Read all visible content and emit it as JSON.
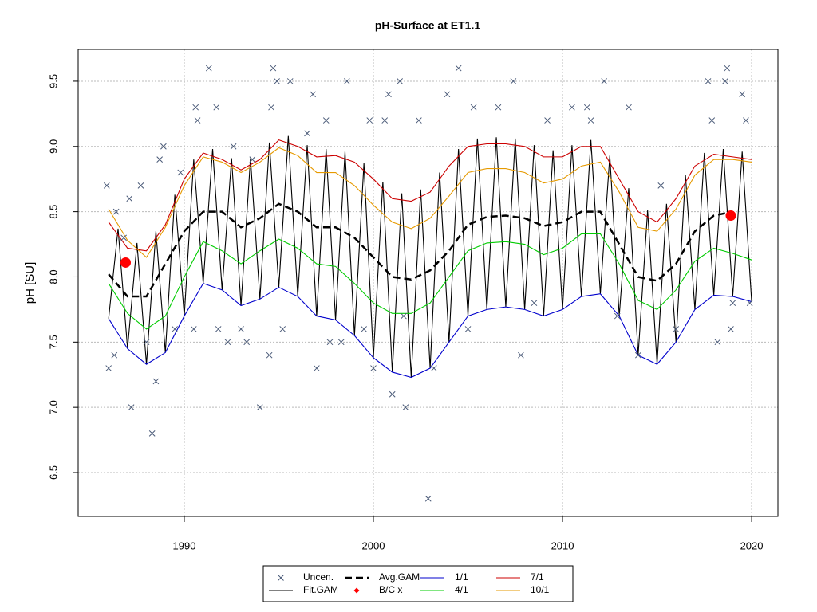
{
  "chart_data": {
    "type": "line",
    "title": "pH-Surface at ET1.1",
    "y_label": "pH [SU]",
    "xlim": [
      1984.39,
      2021.39
    ],
    "ylim": [
      6.164,
      9.744
    ],
    "xticks": [
      1990,
      2000,
      2010,
      2020
    ],
    "yticks": [
      6.5,
      {
        "value": 7,
        "label": "7.0"
      },
      7.5,
      {
        "value": 8,
        "label": "8.0"
      },
      8.5,
      {
        "value": 9,
        "label": "9.0"
      },
      9.5
    ],
    "grid": true,
    "legend": "bottom",
    "series": [
      {
        "name": "Uncen.",
        "kind": "points",
        "marker": "x",
        "color": "#4a5a78",
        "x": [
          1985.9,
          1986.0,
          1986.3,
          1986.4,
          1986.8,
          1987.1,
          1987.2,
          1987.7,
          1988.0,
          1988.3,
          1988.5,
          1988.7,
          1988.9,
          1989.5,
          1989.8,
          1990.5,
          1990.6,
          1990.7,
          1991.3,
          1991.7,
          1991.8,
          1992.3,
          1992.6,
          1993.0,
          1993.3,
          1993.6,
          1994.0,
          1994.5,
          1994.6,
          1994.7,
          1994.9,
          1995.2,
          1995.6,
          1996.5,
          1996.8,
          1997.0,
          1997.5,
          1997.7,
          1998.3,
          1998.6,
          1999.5,
          1999.8,
          2000.0,
          2000.6,
          2000.8,
          2001.0,
          2001.4,
          2001.6,
          2001.7,
          2002.4,
          2002.9,
          2003.2,
          2003.9,
          2004.5,
          2005.0,
          2005.3,
          2006.6,
          2007.4,
          2007.8,
          2008.5,
          2009.2,
          2010.5,
          2011.3,
          2011.5,
          2012.2,
          2012.9,
          2013.5,
          2014.0,
          2015.2,
          2016.0,
          2017.7,
          2017.9,
          2018.2,
          2018.6,
          2018.7,
          2018.9,
          2019.5,
          2019.7,
          2019.0,
          2019.9
        ],
        "values": [
          8.7,
          7.3,
          7.4,
          8.5,
          8.3,
          8.6,
          7.0,
          8.7,
          7.5,
          6.8,
          7.2,
          8.9,
          9.0,
          7.6,
          8.8,
          7.6,
          9.3,
          9.2,
          9.6,
          9.3,
          7.6,
          7.5,
          9.0,
          7.6,
          7.5,
          8.9,
          7.0,
          7.4,
          9.3,
          9.6,
          9.5,
          7.6,
          9.5,
          9.1,
          9.4,
          7.3,
          9.2,
          7.5,
          7.5,
          9.5,
          7.6,
          9.2,
          7.3,
          9.2,
          9.4,
          7.1,
          9.5,
          7.7,
          7.0,
          9.2,
          6.3,
          7.3,
          9.4,
          9.6,
          7.6,
          9.3,
          9.3,
          9.5,
          7.4,
          7.8,
          9.2,
          9.3,
          9.3,
          9.2,
          9.5,
          7.7,
          9.3,
          7.4,
          8.7,
          7.6,
          9.5,
          9.2,
          7.5,
          9.5,
          9.6,
          7.6,
          9.4,
          9.2,
          7.8,
          7.8
        ]
      },
      {
        "name": "Fit.GAM",
        "kind": "line",
        "color": "#000000",
        "x": [
          1986,
          1986.5,
          1987,
          1987.5,
          1988,
          1988.5,
          1989,
          1989.5,
          1990,
          1990.5,
          1991,
          1991.5,
          1992,
          1992.5,
          1993,
          1993.5,
          1994,
          1994.5,
          1995,
          1995.5,
          1996,
          1996.5,
          1997,
          1997.5,
          1998,
          1998.5,
          1999,
          1999.5,
          2000,
          2000.5,
          2001,
          2001.5,
          2002,
          2002.5,
          2003,
          2003.5,
          2004,
          2004.5,
          2005,
          2005.5,
          2006,
          2006.5,
          2007,
          2007.5,
          2008,
          2008.5,
          2009,
          2009.5,
          2010,
          2010.5,
          2011,
          2011.5,
          2012,
          2012.5,
          2013,
          2013.5,
          2014,
          2014.5,
          2015,
          2015.5,
          2016,
          2016.5,
          2017,
          2017.5,
          2018,
          2018.5,
          2019,
          2019.5,
          2020
        ],
        "values": [
          7.68,
          8.37,
          7.45,
          8.26,
          7.33,
          8.35,
          7.42,
          8.63,
          7.7,
          8.9,
          7.95,
          8.98,
          7.9,
          8.91,
          7.78,
          8.91,
          7.83,
          9.03,
          7.92,
          9.08,
          7.85,
          9.01,
          7.7,
          8.98,
          7.67,
          8.96,
          7.55,
          8.87,
          7.38,
          8.73,
          7.27,
          8.64,
          7.23,
          8.67,
          7.3,
          8.8,
          7.5,
          8.98,
          7.7,
          9.06,
          7.75,
          9.07,
          7.77,
          9.06,
          7.75,
          9.01,
          7.7,
          8.97,
          7.75,
          9.01,
          7.85,
          9.05,
          7.87,
          8.93,
          7.7,
          8.68,
          7.4,
          8.51,
          7.33,
          8.56,
          7.5,
          8.78,
          7.75,
          8.95,
          7.86,
          8.98,
          7.85,
          8.96,
          7.81
        ]
      },
      {
        "name": "Avg.GAM",
        "kind": "line",
        "dash": true,
        "color": "#000000",
        "x": [
          1986,
          1987,
          1988,
          1989,
          1990,
          1991,
          1992,
          1993,
          1994,
          1995,
          1996,
          1997,
          1998,
          1999,
          2000,
          2001,
          2002,
          2003,
          2004,
          2005,
          2006,
          2007,
          2008,
          2009,
          2010,
          2011,
          2012,
          2013,
          2014,
          2015,
          2016,
          2017,
          2018,
          2019
        ],
        "values": [
          8.02,
          7.85,
          7.85,
          8.1,
          8.35,
          8.5,
          8.5,
          8.38,
          8.45,
          8.56,
          8.5,
          8.38,
          8.38,
          8.3,
          8.15,
          8.0,
          7.98,
          8.05,
          8.2,
          8.4,
          8.46,
          8.47,
          8.45,
          8.39,
          8.42,
          8.5,
          8.5,
          8.25,
          8.0,
          7.97,
          8.1,
          8.35,
          8.47,
          8.5
        ]
      },
      {
        "name": "B/C x",
        "kind": "points",
        "marker": "circle",
        "color": "#ff0000",
        "x": [
          1986.9,
          2018.9
        ],
        "values": [
          8.11,
          8.47
        ]
      },
      {
        "name": "1/1",
        "kind": "line",
        "color": "#0000cc",
        "x": [
          1986,
          1987,
          1988,
          1989,
          1990,
          1991,
          1992,
          1993,
          1994,
          1995,
          1996,
          1997,
          1998,
          1999,
          2000,
          2001,
          2002,
          2003,
          2004,
          2005,
          2006,
          2007,
          2008,
          2009,
          2010,
          2011,
          2012,
          2013,
          2014,
          2015,
          2016,
          2017,
          2018,
          2019,
          2020
        ],
        "values": [
          7.68,
          7.45,
          7.33,
          7.42,
          7.7,
          7.95,
          7.9,
          7.78,
          7.83,
          7.92,
          7.85,
          7.7,
          7.67,
          7.55,
          7.38,
          7.27,
          7.23,
          7.3,
          7.5,
          7.7,
          7.75,
          7.77,
          7.75,
          7.7,
          7.75,
          7.85,
          7.87,
          7.7,
          7.4,
          7.33,
          7.5,
          7.75,
          7.86,
          7.85,
          7.81
        ]
      },
      {
        "name": "4/1",
        "kind": "line",
        "color": "#00cc00",
        "x": [
          1986,
          1987,
          1988,
          1989,
          1990,
          1991,
          1992,
          1993,
          1994,
          1995,
          1996,
          1997,
          1998,
          1999,
          2000,
          2001,
          2002,
          2003,
          2004,
          2005,
          2006,
          2007,
          2008,
          2009,
          2010,
          2011,
          2012,
          2013,
          2014,
          2015,
          2016,
          2017,
          2018,
          2019,
          2020
        ],
        "values": [
          7.95,
          7.72,
          7.6,
          7.7,
          8.0,
          8.27,
          8.2,
          8.1,
          8.2,
          8.29,
          8.22,
          8.1,
          8.08,
          7.95,
          7.8,
          7.72,
          7.72,
          7.8,
          8.0,
          8.2,
          8.26,
          8.27,
          8.25,
          8.17,
          8.22,
          8.33,
          8.33,
          8.1,
          7.82,
          7.75,
          7.9,
          8.12,
          8.22,
          8.18,
          8.13
        ]
      },
      {
        "name": "7/1",
        "kind": "line",
        "color": "#cc0000",
        "x": [
          1986,
          1987,
          1988,
          1989,
          1990,
          1991,
          1992,
          1993,
          1994,
          1995,
          1996,
          1997,
          1998,
          1999,
          2000,
          2001,
          2002,
          2003,
          2004,
          2005,
          2006,
          2007,
          2008,
          2009,
          2010,
          2011,
          2012,
          2013,
          2014,
          2015,
          2016,
          2017,
          2018,
          2019,
          2020
        ],
        "values": [
          8.42,
          8.22,
          8.2,
          8.4,
          8.75,
          8.95,
          8.9,
          8.82,
          8.9,
          9.05,
          9.0,
          8.92,
          8.93,
          8.88,
          8.75,
          8.6,
          8.58,
          8.65,
          8.85,
          9.0,
          9.02,
          9.02,
          9.0,
          8.92,
          8.92,
          9.0,
          9.0,
          8.75,
          8.5,
          8.42,
          8.6,
          8.85,
          8.94,
          8.92,
          8.9
        ]
      },
      {
        "name": "10/1",
        "kind": "line",
        "color": "#e69a00",
        "x": [
          1986,
          1987,
          1988,
          1989,
          1990,
          1991,
          1992,
          1993,
          1994,
          1995,
          1996,
          1997,
          1998,
          1999,
          2000,
          2001,
          2002,
          2003,
          2004,
          2005,
          2006,
          2007,
          2008,
          2009,
          2010,
          2011,
          2012,
          2013,
          2014,
          2015,
          2016,
          2017,
          2018,
          2019,
          2020
        ],
        "values": [
          8.52,
          8.28,
          8.15,
          8.38,
          8.7,
          8.92,
          8.88,
          8.8,
          8.88,
          8.99,
          8.93,
          8.8,
          8.8,
          8.7,
          8.55,
          8.42,
          8.37,
          8.45,
          8.62,
          8.8,
          8.83,
          8.83,
          8.8,
          8.72,
          8.75,
          8.85,
          8.88,
          8.65,
          8.38,
          8.35,
          8.52,
          8.78,
          8.9,
          8.9,
          8.88
        ]
      }
    ]
  }
}
